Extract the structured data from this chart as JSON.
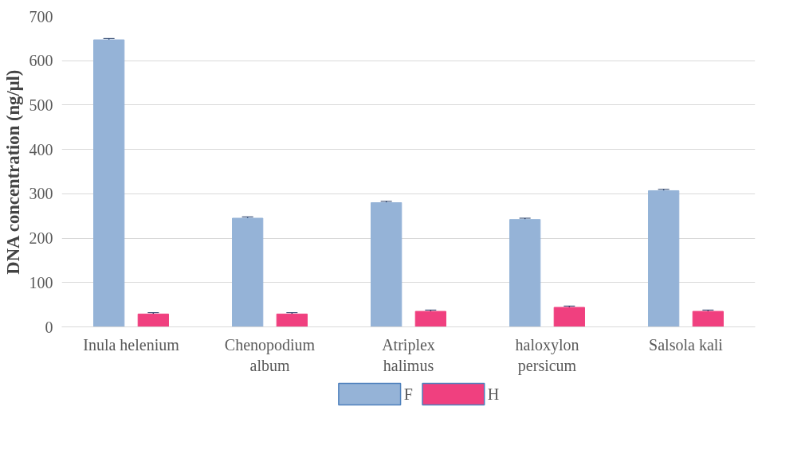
{
  "chart_data": {
    "type": "bar",
    "ylabel": "DNA concentration (ng/μl)",
    "categories": [
      "Inula helenium",
      "Chenopodium\nalbum",
      "Atriplex\nhalimus",
      "haloxylon\npersicum",
      "Salsola kali"
    ],
    "series": [
      {
        "name": "F",
        "color": "#95b3d7",
        "values": [
          647,
          245,
          280,
          242,
          307
        ],
        "errors": [
          3,
          3,
          3,
          3,
          3
        ]
      },
      {
        "name": "H",
        "color": "#f0407f",
        "values": [
          29,
          29,
          35,
          44,
          35
        ],
        "errors": [
          3,
          3,
          3,
          3,
          3
        ]
      }
    ],
    "ylim": [
      0,
      700
    ],
    "yticks": [
      0,
      100,
      200,
      300,
      400,
      500,
      600,
      700
    ],
    "grid": "y",
    "legend": "bottom"
  }
}
